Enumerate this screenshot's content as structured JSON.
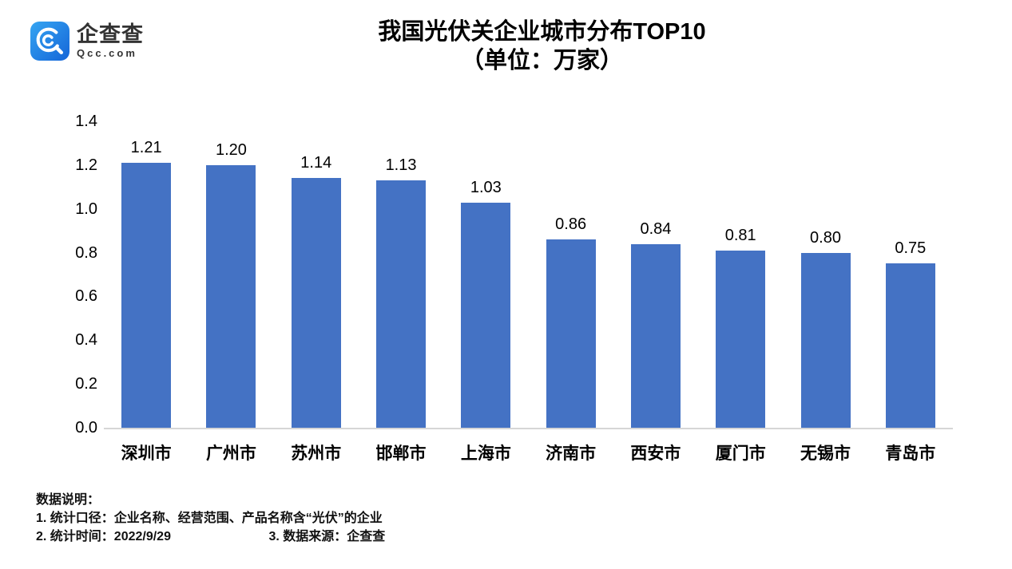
{
  "logo": {
    "name": "企查查",
    "subname": "Qcc.com",
    "brand_color": "#1e82e8"
  },
  "title": {
    "line1": "我国光伏关企业城市分布TOP10",
    "line2": "（单位：万家）"
  },
  "chart_data": {
    "type": "bar",
    "title": "我国光伏关企业城市分布TOP10（单位：万家）",
    "categories": [
      "深圳市",
      "广州市",
      "苏州市",
      "邯郸市",
      "上海市",
      "济南市",
      "西安市",
      "厦门市",
      "无锡市",
      "青岛市"
    ],
    "values": [
      1.21,
      1.2,
      1.14,
      1.13,
      1.03,
      0.86,
      0.84,
      0.81,
      0.8,
      0.75
    ],
    "value_labels": [
      "1.21",
      "1.20",
      "1.14",
      "1.13",
      "1.03",
      "0.86",
      "0.84",
      "0.81",
      "0.80",
      "0.75"
    ],
    "xlabel": "",
    "ylabel": "",
    "ylim": [
      0,
      1.4
    ],
    "yticks": [
      "0.0",
      "0.2",
      "0.4",
      "0.6",
      "0.8",
      "1.0",
      "1.2",
      "1.4"
    ],
    "bar_color": "#4472C4",
    "axis_line_color": "#d6d6d6",
    "grid": false,
    "legend": "none"
  },
  "footer": {
    "heading": "数据说明：",
    "note1": "1. 统计口径：企业名称、经营范围、产品名称含“光伏”的企业",
    "note2": "2. 统计时间：2022/9/29",
    "note3": "3. 数据来源：企查查"
  }
}
